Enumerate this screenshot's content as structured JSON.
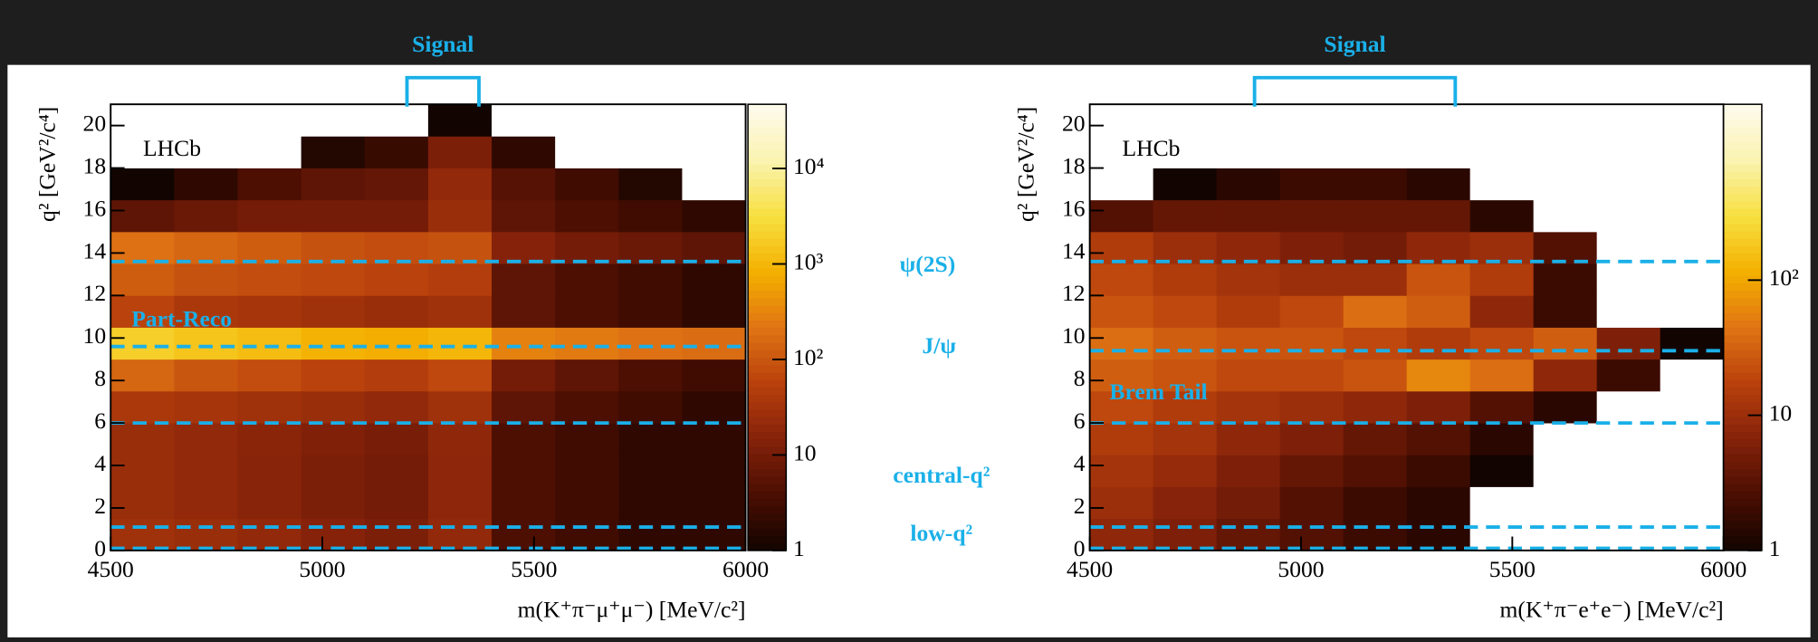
{
  "chart_data": [
    {
      "type": "heatmap",
      "annotation": "LHCb",
      "region_label": "Part-Reco",
      "signal": {
        "label": "Signal",
        "range": [
          5200,
          5370
        ]
      },
      "x_label": "m(K⁺π⁻μ⁺μ⁻) [MeV/c²]",
      "y_label": "q² [GeV²/c⁴]",
      "xlim": [
        4500,
        6000
      ],
      "xticks": [
        4500,
        5000,
        5500,
        6000
      ],
      "ylim": [
        0,
        21
      ],
      "yticks": [
        0,
        2,
        4,
        6,
        8,
        10,
        12,
        14,
        16,
        18,
        20
      ],
      "zscale": "log",
      "zlim": [
        1,
        47000
      ],
      "zticks": [
        1,
        10,
        {
          "value": 100,
          "label": "10²"
        },
        {
          "value": 1000,
          "label": "10³"
        },
        {
          "value": 10000,
          "label": "10⁴"
        }
      ],
      "hlines": [
        0.1,
        1.1,
        6.0,
        9.6,
        13.6
      ],
      "hline_color": "#1ab0e8",
      "xbins": [
        4500,
        4650,
        4800,
        4950,
        5100,
        5250,
        5400,
        5550,
        5700,
        5850,
        6000
      ],
      "ybins": [
        0,
        1.5,
        3,
        4.5,
        6,
        7.5,
        9,
        10.5,
        12,
        13.5,
        15,
        16.5,
        18,
        19.5,
        21
      ],
      "z": [
        [
          30,
          25,
          20,
          15,
          12,
          20,
          4,
          3,
          2,
          2
        ],
        [
          25,
          20,
          16,
          12,
          10,
          18,
          4,
          3,
          2,
          2
        ],
        [
          25,
          20,
          16,
          12,
          10,
          18,
          4,
          3,
          2,
          2
        ],
        [
          25,
          20,
          17,
          13,
          11,
          19,
          4,
          3,
          2,
          2
        ],
        [
          40,
          35,
          30,
          25,
          20,
          30,
          6,
          4,
          3,
          2
        ],
        [
          150,
          100,
          80,
          60,
          50,
          70,
          10,
          6,
          4,
          3
        ],
        [
          2000,
          1500,
          1200,
          900,
          800,
          1000,
          300,
          250,
          200,
          180
        ],
        [
          60,
          40,
          35,
          30,
          25,
          30,
          6,
          4,
          3,
          2
        ],
        [
          120,
          90,
          80,
          70,
          60,
          50,
          6,
          4,
          3,
          2
        ],
        [
          200,
          150,
          120,
          90,
          80,
          90,
          15,
          10,
          8,
          6
        ],
        [
          6,
          8,
          10,
          10,
          10,
          25,
          6,
          4,
          3,
          2
        ],
        [
          1,
          2,
          4,
          6,
          7,
          20,
          5,
          3,
          1.5,
          0.5
        ],
        [
          0,
          0,
          0.5,
          1.5,
          2.5,
          12,
          2,
          0.8,
          0.2,
          0
        ],
        [
          0,
          0,
          0,
          0,
          0.2,
          1,
          0.2,
          0,
          0,
          0
        ]
      ]
    },
    {
      "type": "heatmap",
      "annotation": "LHCb",
      "region_label": "Brem Tail",
      "signal": {
        "label": "Signal",
        "range": [
          4890,
          5365
        ]
      },
      "x_label": "m(K⁺π⁻e⁺e⁻) [MeV/c²]",
      "y_label": "q² [GeV²/c⁴]",
      "xlim": [
        4500,
        6000
      ],
      "xticks": [
        4500,
        5000,
        5500,
        6000
      ],
      "ylim": [
        0,
        21
      ],
      "yticks": [
        0,
        2,
        4,
        6,
        8,
        10,
        12,
        14,
        16,
        18,
        20
      ],
      "zscale": "log",
      "zlim": [
        1,
        2000
      ],
      "zticks": [
        1,
        10,
        {
          "value": 100,
          "label": "10²"
        }
      ],
      "hlines": [
        0.1,
        1.1,
        6.0,
        9.4,
        13.6
      ],
      "hline_color": "#1ab0e8",
      "xbins": [
        4500,
        4650,
        4800,
        4950,
        5100,
        5250,
        5400,
        5550,
        5700,
        5850,
        6000
      ],
      "ybins": [
        0,
        1.5,
        3,
        4.5,
        6,
        7.5,
        9,
        10.5,
        12,
        13.5,
        15,
        16.5,
        18,
        19.5,
        21
      ],
      "z": [
        [
          8,
          6,
          4,
          3,
          2,
          1.5,
          0.5,
          0.3,
          0.2,
          0.1
        ],
        [
          10,
          7,
          5,
          3,
          2,
          1.5,
          0.6,
          0.4,
          0.2,
          0.1
        ],
        [
          12,
          9,
          6,
          4,
          3,
          2,
          1,
          0.5,
          0.3,
          0.2
        ],
        [
          15,
          12,
          8,
          6,
          4,
          3,
          1.5,
          0.8,
          0.4,
          0.2
        ],
        [
          20,
          15,
          12,
          10,
          8,
          6,
          3,
          1.5,
          0.6,
          0.3
        ],
        [
          30,
          25,
          20,
          20,
          25,
          60,
          40,
          8,
          2,
          0.5
        ],
        [
          40,
          30,
          25,
          25,
          20,
          15,
          20,
          30,
          6,
          1
        ],
        [
          25,
          20,
          15,
          20,
          40,
          30,
          8,
          2,
          0.6,
          0.2
        ],
        [
          20,
          15,
          12,
          10,
          10,
          25,
          15,
          2,
          0.4,
          0.1
        ],
        [
          15,
          10,
          8,
          6,
          5,
          8,
          10,
          3,
          0.5,
          0.1
        ],
        [
          3,
          4,
          4,
          4,
          4,
          4,
          1.5,
          0.5,
          0.1,
          0
        ],
        [
          0.5,
          1,
          1.5,
          2,
          2,
          1.5,
          0.5,
          0.1,
          0,
          0
        ],
        [
          0,
          0.1,
          0.3,
          0.5,
          0.6,
          0.5,
          0.2,
          0,
          0,
          0
        ],
        [
          0,
          0,
          0,
          0,
          0.1,
          0.1,
          0,
          0,
          0,
          0
        ]
      ]
    }
  ],
  "labels": [
    "ψ(2S)",
    "J/ψ",
    "central-q²",
    "low-q²"
  ],
  "colormap": [
    "#120400",
    "#4a0e02",
    "#85220a",
    "#b8400c",
    "#e07414",
    "#f4b000",
    "#f7e040",
    "#fbf3b0",
    "#fdfbee"
  ]
}
